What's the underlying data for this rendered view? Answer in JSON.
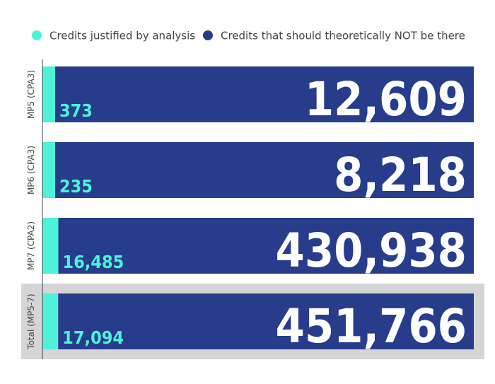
{
  "chart_data": {
    "type": "bar",
    "orientation": "horizontal",
    "stacked": true,
    "categories": [
      "MP5 (CPA3)",
      "MP6 (CPA3)",
      "MP7 (CPA2)",
      "Total (MP5-7)"
    ],
    "series": [
      {
        "name": "Credits justified by analysis",
        "values": [
          373,
          235,
          16485,
          17094
        ],
        "labels": [
          "373",
          "235",
          "16,485",
          "17,094"
        ],
        "color": "#4ef2d9"
      },
      {
        "name": "Credits that should theoretically NOT be there",
        "values": [
          12609,
          8218,
          430938,
          451766
        ],
        "labels": [
          "12,609",
          "8,218",
          "430,938",
          "451,766"
        ],
        "color": "#283c8c"
      }
    ],
    "legend_position": "top",
    "highlight_category": "Total (MP5-7)",
    "highlight_color": "#d5d5d5",
    "grid": false
  }
}
